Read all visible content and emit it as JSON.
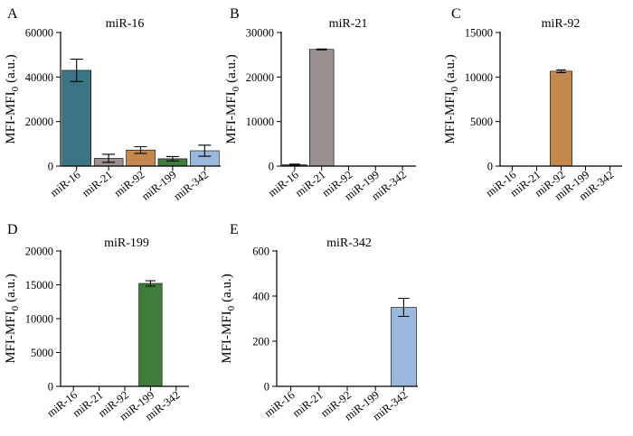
{
  "chart_data": [
    {
      "panel": "A",
      "type": "bar",
      "title": "miR-16",
      "categories": [
        "miR-16",
        "miR-21",
        "miR-92",
        "miR-199",
        "miR-342"
      ],
      "values": [
        43000,
        3500,
        7200,
        3300,
        6900
      ],
      "errors": [
        5000,
        1800,
        1500,
        1000,
        2500
      ],
      "ylabel": "MFI-MFI",
      "ylabel_sub": "0",
      "ylabel_unit": "(a.u.)",
      "ylim": [
        0,
        60000
      ],
      "yticks": [
        0,
        20000,
        40000,
        60000
      ],
      "yticklabels": [
        "0",
        "20000",
        "40000",
        "60000"
      ],
      "colors": [
        "#3a7585",
        "#9b908f",
        "#c4874d",
        "#3e7d3a",
        "#9ab8de"
      ]
    },
    {
      "panel": "B",
      "type": "bar",
      "title": "miR-21",
      "categories": [
        "miR-16",
        "miR-21",
        "miR-92",
        "miR-199",
        "miR-342"
      ],
      "values": [
        300,
        26200,
        0,
        0,
        0
      ],
      "errors": [
        150,
        100,
        0,
        0,
        0
      ],
      "ylabel": "MFI-MFI",
      "ylabel_sub": "0",
      "ylabel_unit": "(a.u.)",
      "ylim": [
        0,
        30000
      ],
      "yticks": [
        0,
        10000,
        20000,
        30000
      ],
      "yticklabels": [
        "0",
        "10000",
        "20000",
        "30000"
      ],
      "colors": [
        "#3a7585",
        "#9b908f",
        "#c4874d",
        "#3e7d3a",
        "#9ab8de"
      ]
    },
    {
      "panel": "C",
      "type": "bar",
      "title": "miR-92",
      "categories": [
        "miR-16",
        "miR-21",
        "miR-92",
        "miR-199",
        "miR-342"
      ],
      "values": [
        0,
        0,
        10650,
        0,
        0
      ],
      "errors": [
        0,
        0,
        150,
        0,
        0
      ],
      "ylabel": "MFI-MFI",
      "ylabel_sub": "0",
      "ylabel_unit": "(a.u.)",
      "ylim": [
        0,
        15000
      ],
      "yticks": [
        0,
        5000,
        10000,
        15000
      ],
      "yticklabels": [
        "0",
        "5000",
        "10000",
        "15000"
      ],
      "colors": [
        "#3a7585",
        "#9b908f",
        "#c4874d",
        "#3e7d3a",
        "#9ab8de"
      ]
    },
    {
      "panel": "D",
      "type": "bar",
      "title": "miR-199",
      "categories": [
        "miR-16",
        "miR-21",
        "miR-92",
        "miR-199",
        "miR-342"
      ],
      "values": [
        0,
        0,
        0,
        15200,
        0
      ],
      "errors": [
        0,
        0,
        0,
        400,
        0
      ],
      "ylabel": "MFI-MFI",
      "ylabel_sub": "0",
      "ylabel_unit": "(a.u.)",
      "ylim": [
        0,
        20000
      ],
      "yticks": [
        0,
        5000,
        10000,
        15000,
        20000
      ],
      "yticklabels": [
        "0",
        "5000",
        "10000",
        "15000",
        "20000"
      ],
      "colors": [
        "#3a7585",
        "#9b908f",
        "#c4874d",
        "#3e7d3a",
        "#9ab8de"
      ]
    },
    {
      "panel": "E",
      "type": "bar",
      "title": "miR-342",
      "categories": [
        "miR-16",
        "miR-21",
        "miR-92",
        "miR-199",
        "miR-342"
      ],
      "values": [
        0,
        0,
        0,
        0,
        350
      ],
      "errors": [
        0,
        0,
        0,
        0,
        40
      ],
      "ylabel": "MFI-MFI",
      "ylabel_sub": "0",
      "ylabel_unit": "(a.u.)",
      "ylim": [
        0,
        600
      ],
      "yticks": [
        0,
        200,
        400,
        600
      ],
      "yticklabels": [
        "0",
        "200",
        "400",
        "600"
      ],
      "colors": [
        "#3a7585",
        "#9b908f",
        "#c4874d",
        "#3e7d3a",
        "#9ab8de"
      ]
    }
  ]
}
